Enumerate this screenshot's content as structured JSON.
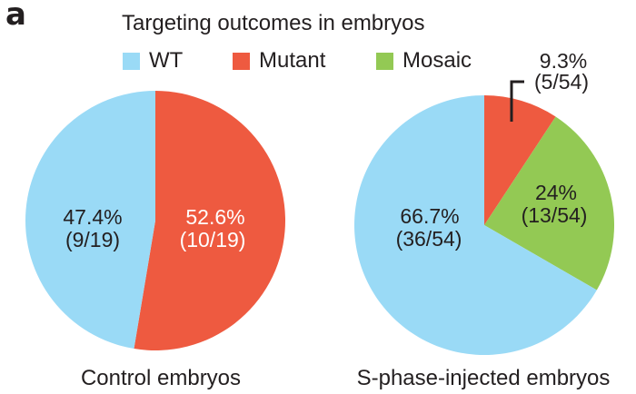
{
  "panel_label": "a",
  "chart_data": {
    "type": "pie",
    "title": "Targeting outcomes in embryos",
    "legend": {
      "placement": "top",
      "entries": [
        {
          "name": "WT",
          "color": "#9adaf6"
        },
        {
          "name": "Mutant",
          "color": "#ee5a40"
        },
        {
          "name": "Mosaic",
          "color": "#93c954"
        }
      ]
    },
    "pies": [
      {
        "caption": "Control embryos",
        "total": 19,
        "slices": [
          {
            "category": "Mutant",
            "value": 10,
            "percent": 52.6,
            "label_pct": "52.6%",
            "label_frac": "(10/19)",
            "color": "#ee5a40",
            "label_color": "#ffffff"
          },
          {
            "category": "WT",
            "value": 9,
            "percent": 47.4,
            "label_pct": "47.4%",
            "label_frac": "(9/19)",
            "color": "#9adaf6",
            "label_color": "#231f20"
          }
        ]
      },
      {
        "caption": "S-phase-injected embryos",
        "total": 54,
        "slices": [
          {
            "category": "Mutant",
            "value": 5,
            "percent": 9.3,
            "label_pct": "9.3%",
            "label_frac": "(5/54)",
            "color": "#ee5a40",
            "label_color": "#231f20"
          },
          {
            "category": "Mosaic",
            "value": 13,
            "percent": 24,
            "label_pct": "24%",
            "label_frac": "(13/54)",
            "color": "#93c954",
            "label_color": "#231f20"
          },
          {
            "category": "WT",
            "value": 36,
            "percent": 66.7,
            "label_pct": "66.7%",
            "label_frac": "(36/54)",
            "color": "#9adaf6",
            "label_color": "#231f20"
          }
        ]
      }
    ]
  }
}
